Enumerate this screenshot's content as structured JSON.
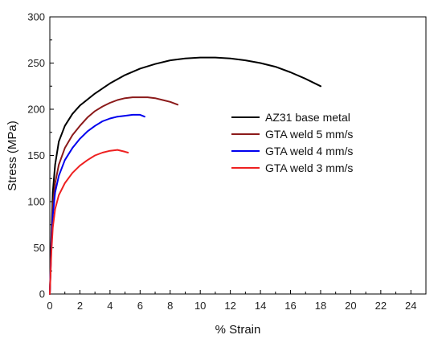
{
  "chart_data": {
    "type": "line",
    "title": "",
    "xlabel": "% Strain",
    "ylabel": "Stress (MPa)",
    "xlim": [
      0,
      25
    ],
    "ylim": [
      0,
      300
    ],
    "xticks": [
      0,
      2,
      4,
      6,
      8,
      10,
      12,
      14,
      16,
      18,
      20,
      22,
      24
    ],
    "yticks": [
      0,
      50,
      100,
      150,
      200,
      250,
      300
    ],
    "grid": false,
    "legend_position": "center-right",
    "series": [
      {
        "name": "AZ31 base metal",
        "color": "#000000",
        "points": [
          [
            0,
            0
          ],
          [
            0.1,
            60
          ],
          [
            0.2,
            110
          ],
          [
            0.35,
            140
          ],
          [
            0.6,
            165
          ],
          [
            1.0,
            182
          ],
          [
            1.5,
            195
          ],
          [
            2,
            204
          ],
          [
            3,
            217
          ],
          [
            4,
            228
          ],
          [
            5,
            237
          ],
          [
            6,
            244
          ],
          [
            7,
            249
          ],
          [
            8,
            253
          ],
          [
            9,
            255
          ],
          [
            10,
            256
          ],
          [
            11,
            256
          ],
          [
            12,
            255
          ],
          [
            13,
            253
          ],
          [
            14,
            250
          ],
          [
            15,
            246
          ],
          [
            16,
            240
          ],
          [
            17,
            233
          ],
          [
            18,
            225
          ]
        ]
      },
      {
        "name": "GTA weld 5 mm/s",
        "color": "#8b1a1a",
        "points": [
          [
            0,
            0
          ],
          [
            0.1,
            55
          ],
          [
            0.2,
            95
          ],
          [
            0.35,
            120
          ],
          [
            0.6,
            140
          ],
          [
            1.0,
            158
          ],
          [
            1.5,
            172
          ],
          [
            2,
            182
          ],
          [
            2.5,
            191
          ],
          [
            3,
            198
          ],
          [
            3.5,
            203
          ],
          [
            4,
            207
          ],
          [
            4.5,
            210
          ],
          [
            5,
            212
          ],
          [
            5.5,
            213
          ],
          [
            6,
            213
          ],
          [
            6.5,
            213
          ],
          [
            7,
            212
          ],
          [
            7.5,
            210
          ],
          [
            8,
            208
          ],
          [
            8.5,
            205
          ]
        ]
      },
      {
        "name": "GTA weld 4 mm/s",
        "color": "#0000ee",
        "points": [
          [
            0,
            0
          ],
          [
            0.1,
            50
          ],
          [
            0.2,
            85
          ],
          [
            0.35,
            110
          ],
          [
            0.6,
            128
          ],
          [
            1.0,
            145
          ],
          [
            1.5,
            158
          ],
          [
            2,
            168
          ],
          [
            2.5,
            176
          ],
          [
            3,
            182
          ],
          [
            3.5,
            187
          ],
          [
            4,
            190
          ],
          [
            4.5,
            192
          ],
          [
            5,
            193
          ],
          [
            5.5,
            194
          ],
          [
            6,
            194
          ],
          [
            6.3,
            192
          ]
        ]
      },
      {
        "name": "GTA weld 3 mm/s",
        "color": "#ee2020",
        "points": [
          [
            0,
            0
          ],
          [
            0.1,
            45
          ],
          [
            0.2,
            72
          ],
          [
            0.35,
            92
          ],
          [
            0.6,
            107
          ],
          [
            1.0,
            120
          ],
          [
            1.5,
            131
          ],
          [
            2,
            139
          ],
          [
            2.5,
            145
          ],
          [
            3,
            150
          ],
          [
            3.5,
            153
          ],
          [
            4,
            155
          ],
          [
            4.5,
            156
          ],
          [
            5,
            154
          ],
          [
            5.2,
            153
          ]
        ]
      }
    ]
  }
}
